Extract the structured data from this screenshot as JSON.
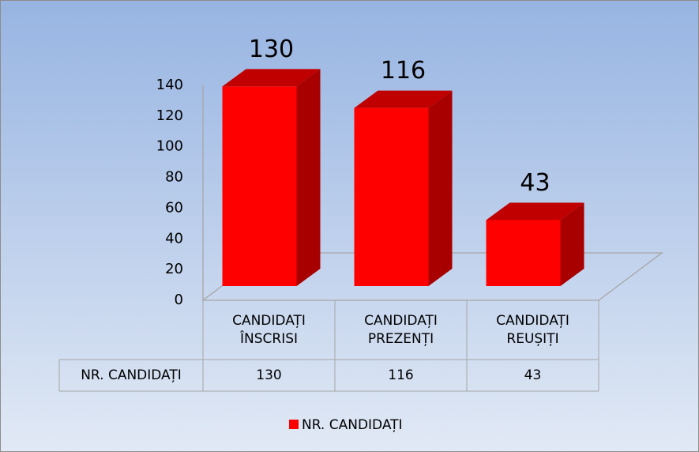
{
  "chart_data": {
    "type": "bar3d",
    "categories": [
      "CANDIDAȚI ÎNSCRISI",
      "CANDIDAȚI PREZENȚI",
      "CANDIDAȚI REUȘIȚI"
    ],
    "series": [
      {
        "name": "NR. CANDIDAȚI",
        "color": "#ff0000",
        "values": [
          130,
          116,
          43
        ]
      }
    ],
    "ylim": [
      0,
      140
    ],
    "yticks": [
      0,
      20,
      40,
      60,
      80,
      100,
      120,
      140
    ],
    "data_table": true,
    "legend": "bottom"
  }
}
